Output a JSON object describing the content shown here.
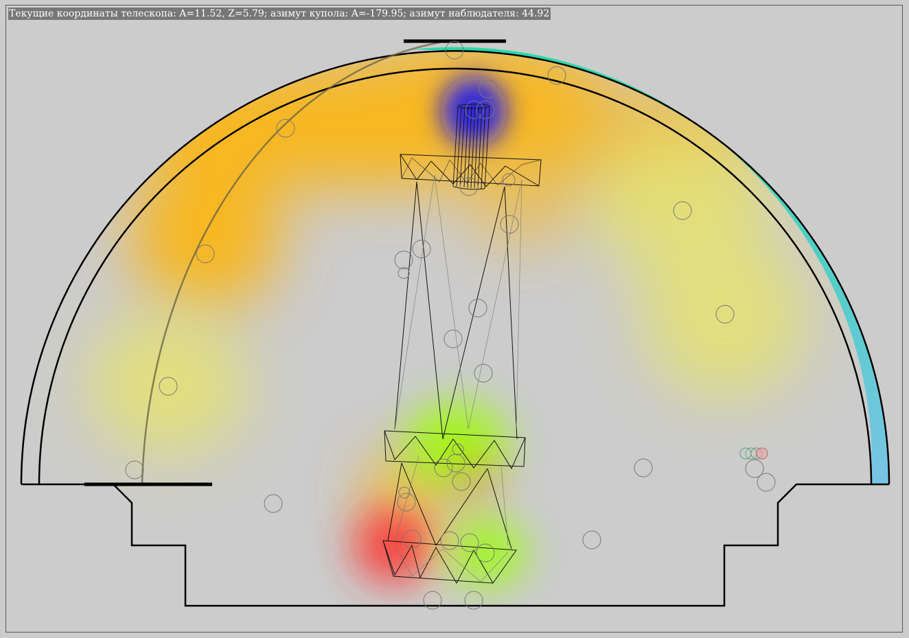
{
  "status": {
    "text": "Текущие координаты телескопа: A=11.52, Z=5.79; азимут купола: A=-179.95; азимут наблюдателя: 44.92"
  },
  "telescope": {
    "azimuth": 11.52,
    "zenith": 5.79
  },
  "dome": {
    "azimuth": -179.95
  },
  "observer": {
    "azimuth": 44.92
  },
  "colors": {
    "background": "#cccccc",
    "outline": "#000000",
    "slit_gradient_top": "#2ad8a6",
    "slit_gradient_bottom": "#7ac4e6",
    "heat_orange": "#ffb300",
    "heat_yellow": "#e6e36a",
    "heat_red": "#ff2a2a",
    "heat_green": "#9aff00",
    "heat_blue": "#1010ff"
  },
  "icons": {
    "telescope": "telescope-wireframe-icon",
    "sensor": "sensor-circle-icon"
  }
}
